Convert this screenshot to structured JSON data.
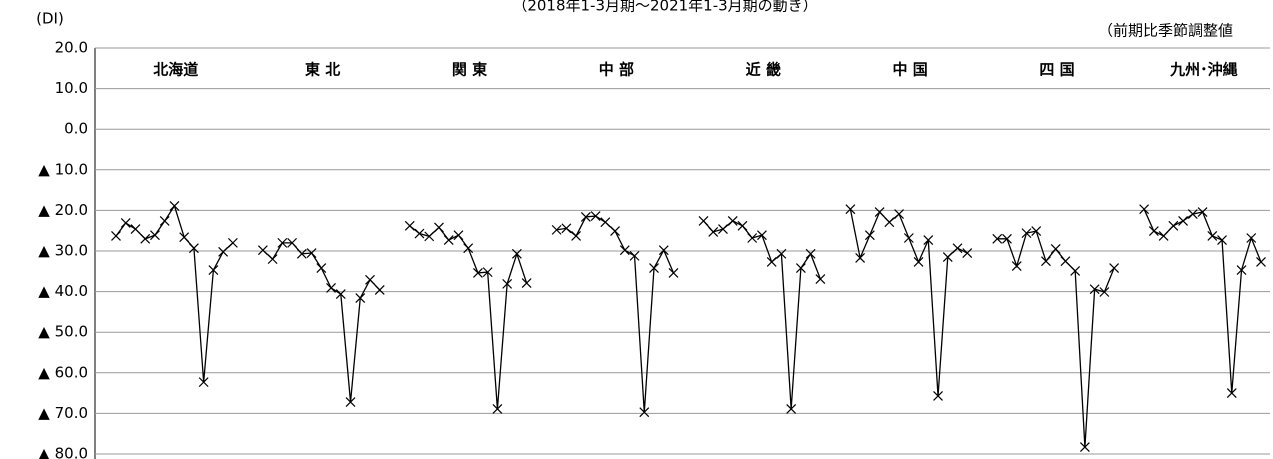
{
  "chart_data": {
    "type": "line",
    "title": "（2018年1-3月期～2021年1-3月期の動き）",
    "y_label": "(DI)",
    "note": "（前期比季節調整値",
    "ylim": [
      -80,
      20
    ],
    "yticks": [
      {
        "value": 20,
        "label": "20.0"
      },
      {
        "value": 10,
        "label": "10.0"
      },
      {
        "value": 0,
        "label": "0.0"
      },
      {
        "value": -10,
        "label": "▲ 10.0"
      },
      {
        "value": -20,
        "label": "▲ 20.0"
      },
      {
        "value": -30,
        "label": "▲ 30.0"
      },
      {
        "value": -40,
        "label": "▲ 40.0"
      },
      {
        "value": -50,
        "label": "▲ 50.0"
      },
      {
        "value": -60,
        "label": "▲ 60.0"
      },
      {
        "value": -70,
        "label": "▲ 70.0"
      },
      {
        "value": -80,
        "label": "▲ 80.0"
      }
    ],
    "grid": true,
    "color": "#000000",
    "series": [
      {
        "name": "北海道",
        "values": [
          -26.3,
          -23.1,
          -24.6,
          -27.0,
          -26.1,
          -22.6,
          -18.9,
          -26.6,
          -29.3,
          -62.3,
          -34.7,
          -30.2,
          -28.0
        ]
      },
      {
        "name": "東 北",
        "values": [
          -29.8,
          -32.0,
          -28.0,
          -28.0,
          -30.7,
          -30.5,
          -34.2,
          -39.1,
          -40.6,
          -67.2,
          -41.6,
          -37.1,
          -39.6
        ]
      },
      {
        "name": "関 東",
        "values": [
          -23.8,
          -25.7,
          -26.4,
          -24.2,
          -27.3,
          -26.1,
          -29.3,
          -35.4,
          -35.2,
          -68.9,
          -38.1,
          -30.7,
          -37.9
        ]
      },
      {
        "name": "中 部",
        "values": [
          -24.8,
          -24.4,
          -26.3,
          -21.6,
          -21.4,
          -22.9,
          -25.1,
          -29.8,
          -31.2,
          -69.7,
          -34.2,
          -29.8,
          -35.4
        ]
      },
      {
        "name": "近 畿",
        "values": [
          -22.6,
          -25.3,
          -24.6,
          -22.6,
          -23.8,
          -26.8,
          -26.1,
          -32.7,
          -30.7,
          -68.9,
          -34.2,
          -30.7,
          -36.9
        ]
      },
      {
        "name": "中 国",
        "values": [
          -19.7,
          -31.7,
          -26.1,
          -20.4,
          -22.9,
          -20.9,
          -26.8,
          -32.7,
          -27.3,
          -65.7,
          -31.5,
          -29.3,
          -30.5
        ]
      },
      {
        "name": "四 国",
        "values": [
          -27.0,
          -27.0,
          -33.7,
          -25.6,
          -25.1,
          -32.5,
          -29.5,
          -32.5,
          -34.9,
          -78.3,
          -39.4,
          -40.1,
          -34.2
        ]
      },
      {
        "name": "九州･沖縄",
        "values": [
          -19.7,
          -25.1,
          -26.3,
          -23.8,
          -22.6,
          -20.9,
          -20.4,
          -26.3,
          -27.3,
          -65.0,
          -34.7,
          -26.8,
          -32.7
        ]
      }
    ]
  }
}
